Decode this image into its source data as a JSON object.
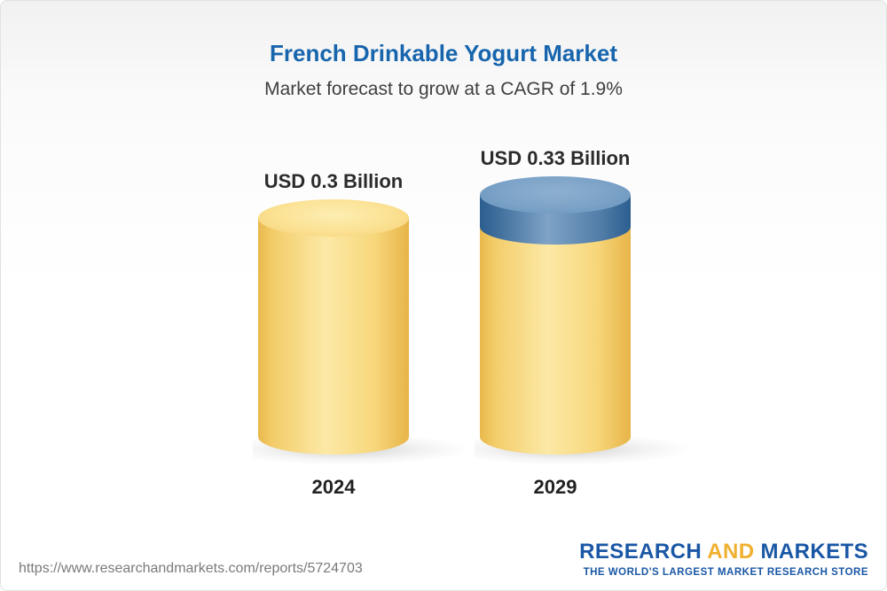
{
  "chart_data": {
    "type": "bar",
    "title": "French Drinkable Yogurt Market",
    "subtitle": "Market forecast to grow at a CAGR of 1.9%",
    "categories": [
      "2024",
      "2029"
    ],
    "values": [
      0.3,
      0.33
    ],
    "value_labels": [
      "USD 0.3 Billion",
      "USD 0.33 Billion"
    ],
    "unit": "USD Billion",
    "cagr_percent": 1.9,
    "legend_position": "none",
    "grid": false,
    "colors": {
      "bar_body": "#f7cf6b",
      "bar_top": "#fbe193",
      "growth_cap": "#4a76a3",
      "growth_cap_top": "#7ba2c7",
      "title_text": "#1765ad"
    }
  },
  "footer": {
    "url": "https://www.researchandmarkets.com/reports/5724703",
    "logo": {
      "part1": "RESEARCH",
      "part2": "AND",
      "part3": "MARKETS",
      "tagline": "THE WORLD'S LARGEST MARKET RESEARCH STORE"
    }
  }
}
